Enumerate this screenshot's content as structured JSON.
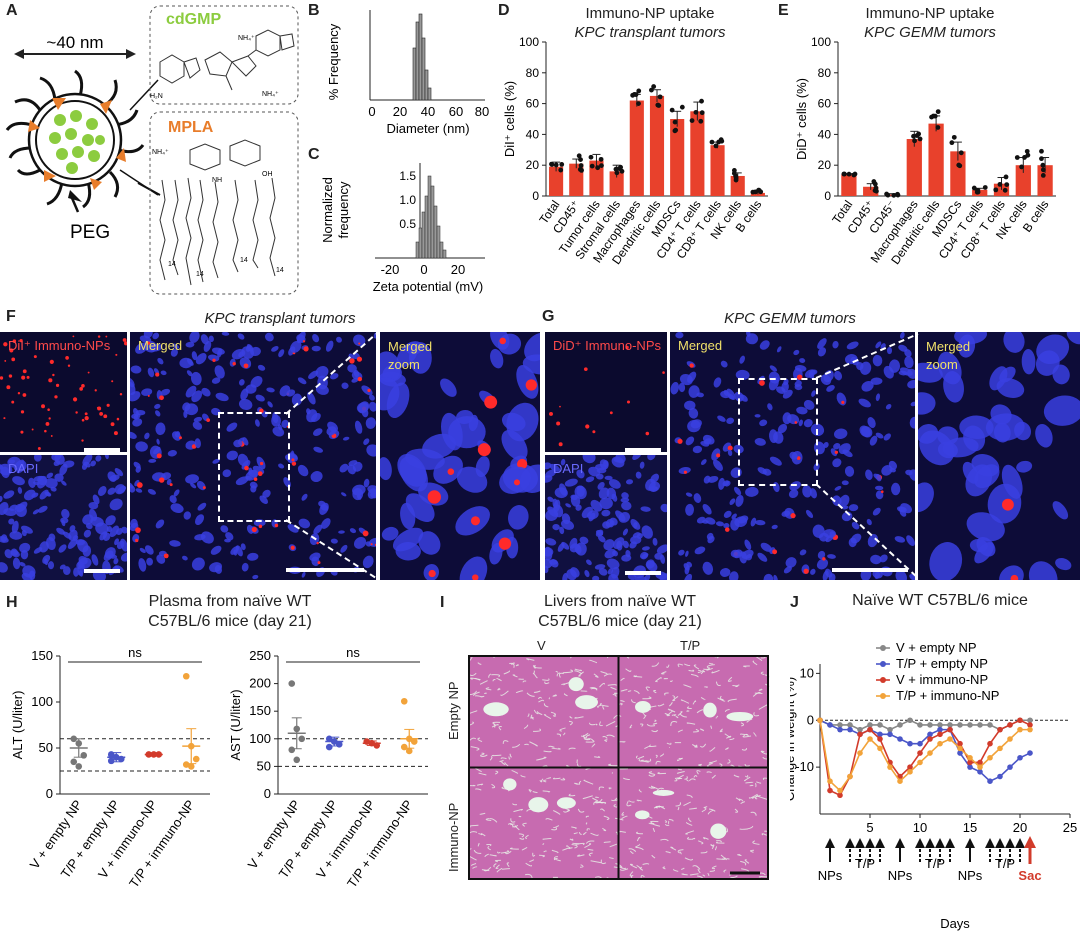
{
  "panels": {
    "A": {
      "letter": "A",
      "size": "~40 nm",
      "cdgmp": "cdGMP",
      "mpla": "MPLA",
      "peg": "PEG",
      "atom_nh4": "NH₄⁺",
      "atom_n": "N",
      "atom_o": "O",
      "atom_oh": "OH",
      "atom_h2n": "H₂N",
      "atom_nh": "NH",
      "chain14": "14"
    },
    "B": {
      "letter": "B",
      "ylabel": "% Frequency",
      "xlabel": "Diameter (nm)",
      "ticks": [
        "0",
        "20",
        "40",
        "60",
        "80"
      ]
    },
    "C": {
      "letter": "C",
      "ylabel": "Normalized frequency",
      "ylabel1": "Normalized",
      "ylabel2": "frequency",
      "xlabel": "Zeta potential (mV)",
      "xticks": [
        "-20",
        "0",
        "20"
      ],
      "yticks": [
        "0.5",
        "1.0",
        "1.5"
      ]
    },
    "D": {
      "letter": "D",
      "title1": "Immuno-NP uptake",
      "title2": "KPC transplant tumors",
      "ylabel": "DiI⁺ cells (%)"
    },
    "E": {
      "letter": "E",
      "title1": "Immuno-NP uptake",
      "title2": "KPC GEMM tumors",
      "ylabel": "DiD⁺ cells (%)"
    },
    "F": {
      "letter": "F",
      "title": "KPC transplant tumors",
      "red_label": "DiI⁺ Immuno-NPs",
      "dapi": "DAPI",
      "merged": "Merged",
      "zoom1": "Merged",
      "zoom2": "zoom"
    },
    "G": {
      "letter": "G",
      "title": "KPC GEMM tumors",
      "red_label": "DiD⁺ Immuno-NPs",
      "dapi": "DAPI",
      "merged": "Merged",
      "zoom1": "Merged",
      "zoom2": "zoom"
    },
    "H": {
      "letter": "H",
      "title1": "Plasma from naïve WT",
      "title2": "C57BL/6 mice (day 21)",
      "alt_ylabel": "ALT (U/liter)",
      "ast_ylabel": "AST (U/liter)",
      "ns": "ns"
    },
    "I": {
      "letter": "I",
      "title1": "Livers from naïve WT",
      "title2": "C57BL/6 mice (day 21)",
      "col1": "V",
      "col2": "T/P",
      "row1": "Empty NP",
      "row2": "Immuno-NP"
    },
    "J": {
      "letter": "J",
      "title": "Naïve WT C57BL/6 mice",
      "ylabel": "Change in weight (%)",
      "xlabel": "Days",
      "nps": "NPs",
      "tp": "T/P",
      "sac": "Sac"
    }
  },
  "chart_data": [
    {
      "id": "D",
      "type": "bar",
      "ylim": [
        0,
        100
      ],
      "yticks": [
        0,
        20,
        40,
        60,
        80,
        100
      ],
      "categories": [
        "Total",
        "CD45⁺",
        "Tumor cells",
        "Stromal cells",
        "Macrophages",
        "Dendritic cells",
        "MDSCs",
        "CD4⁺ T cells",
        "CD8⁺ T cells",
        "NK cells",
        "B cells"
      ],
      "values": [
        19,
        21,
        23,
        16,
        62,
        65,
        50,
        55,
        33,
        13,
        2
      ],
      "errors": [
        3,
        3,
        4,
        4,
        4,
        4,
        5,
        6,
        2,
        2,
        1
      ]
    },
    {
      "id": "E",
      "type": "bar",
      "ylim": [
        0,
        100
      ],
      "yticks": [
        0,
        20,
        40,
        60,
        80,
        100
      ],
      "categories": [
        "Total",
        "CD45⁺",
        "CD45⁻",
        "Macrophages",
        "Dendritic cells",
        "MDSCs",
        "CD4⁺ T cells",
        "CD8⁺ T cells",
        "NK cells",
        "B cells"
      ],
      "values": [
        14,
        6,
        1,
        37,
        47,
        29,
        4,
        8,
        20,
        20
      ],
      "errors": [
        0.5,
        2,
        0.5,
        5,
        5,
        6,
        1,
        4,
        5,
        5
      ]
    },
    {
      "id": "H-ALT",
      "type": "scatter",
      "ylim": [
        0,
        150
      ],
      "yticks": [
        0,
        50,
        100,
        150
      ],
      "categories": [
        "V + empty NP",
        "T/P + empty NP",
        "V + immuno-NP",
        "T/P + immuno-NP"
      ],
      "means": [
        50,
        40,
        43,
        52
      ],
      "errors": [
        10,
        5,
        1,
        19
      ],
      "points": [
        [
          60,
          55,
          42,
          35,
          30
        ],
        [
          43,
          40,
          38,
          36
        ],
        [
          43,
          43,
          43
        ],
        [
          128,
          52,
          38,
          32,
          30
        ]
      ],
      "colors": [
        "#777777",
        "#4a56c8",
        "#d23b2b",
        "#f2a33a"
      ],
      "ref_lines": [
        60,
        25
      ]
    },
    {
      "id": "H-AST",
      "type": "scatter",
      "ylim": [
        0,
        250
      ],
      "yticks": [
        0,
        50,
        100,
        150,
        200,
        250
      ],
      "categories": [
        "V + empty NP",
        "T/P + empty NP",
        "V + immuno-NP",
        "T/P + immuno-NP"
      ],
      "means": [
        110,
        95,
        92,
        100
      ],
      "errors": [
        28,
        8,
        4,
        17
      ],
      "points": [
        [
          200,
          118,
          100,
          80,
          62
        ],
        [
          100,
          95,
          90,
          85
        ],
        [
          95,
          92,
          88
        ],
        [
          168,
          100,
          95,
          85,
          78
        ]
      ],
      "colors": [
        "#777777",
        "#4a56c8",
        "#d23b2b",
        "#f2a33a"
      ],
      "ref_lines": [
        100,
        50
      ]
    },
    {
      "id": "J",
      "type": "line",
      "xlim": [
        0,
        25
      ],
      "ylim": [
        -20,
        12
      ],
      "xticks": [
        5,
        10,
        15,
        20,
        25
      ],
      "yticks": [
        10,
        0,
        -10
      ],
      "series": [
        {
          "name": "V + empty NP",
          "color": "#888888",
          "x": [
            0,
            1,
            2,
            3,
            4,
            5,
            6,
            7,
            8,
            9,
            10,
            11,
            12,
            13,
            14,
            15,
            16,
            17,
            18,
            19,
            20,
            21
          ],
          "y": [
            0,
            -1,
            -1,
            -1,
            -2,
            -1,
            -1,
            -2,
            -1,
            0,
            -1,
            -1,
            -1,
            -1,
            -1,
            -1,
            -1,
            -1,
            -2,
            -1,
            0,
            0
          ]
        },
        {
          "name": "T/P + empty NP",
          "color": "#4a56c8",
          "x": [
            0,
            1,
            2,
            3,
            4,
            5,
            6,
            7,
            8,
            9,
            10,
            11,
            12,
            13,
            14,
            15,
            16,
            17,
            18,
            19,
            20,
            21
          ],
          "y": [
            0,
            -1,
            -2,
            -2,
            -3,
            -2,
            -3,
            -3,
            -4,
            -5,
            -5,
            -3,
            -2,
            -2,
            -7,
            -10,
            -11,
            -13,
            -12,
            -10,
            -8,
            -7
          ]
        },
        {
          "name": "V + immuno-NP",
          "color": "#d23b2b",
          "x": [
            0,
            1,
            2,
            3,
            4,
            5,
            6,
            7,
            8,
            9,
            10,
            11,
            12,
            13,
            14,
            15,
            16,
            17,
            18,
            19,
            20,
            21
          ],
          "y": [
            0,
            -15,
            -16,
            -12,
            -3,
            -2,
            -4,
            -9,
            -12,
            -10,
            -7,
            -4,
            -3,
            -2,
            -5,
            -9,
            -9,
            -5,
            -2,
            -1,
            0,
            -1
          ]
        },
        {
          "name": "T/P + immuno-NP",
          "color": "#f2a33a",
          "x": [
            0,
            1,
            2,
            3,
            4,
            5,
            6,
            7,
            8,
            9,
            10,
            11,
            12,
            13,
            14,
            15,
            16,
            17,
            18,
            19,
            20,
            21
          ],
          "y": [
            0,
            -13,
            -15,
            -12,
            -7,
            -4,
            -6,
            -10,
            -13,
            -11,
            -9,
            -7,
            -5,
            -4,
            -6,
            -8,
            -10,
            -8,
            -6,
            -4,
            -2,
            -2
          ]
        }
      ]
    }
  ],
  "colors": {
    "bar": "#e8412c",
    "dapi": "#3a3fe0",
    "np_red": "#ff2a2a",
    "label_yellow": "#f0e06a",
    "label_red": "#ff4a4a",
    "micro_bg": "#0b0a2e",
    "green": "#8ccc3f",
    "orange": "#e87d2b"
  }
}
